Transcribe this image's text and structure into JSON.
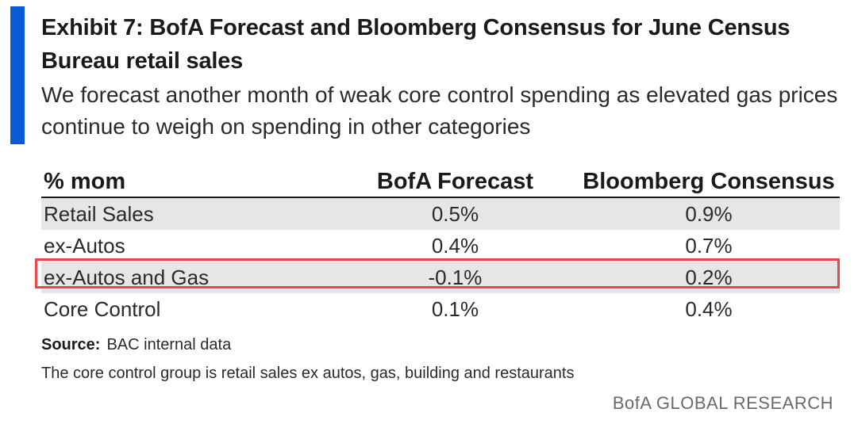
{
  "exhibit": {
    "title": "Exhibit 7: BofA Forecast and Bloomberg Consensus for June Census Bureau retail sales",
    "subtitle": "We forecast another month of weak core control spending as elevated gas prices continue to weigh on spending in other categories",
    "accent_color": "#0a5bd6",
    "highlight_color": "#e8474c"
  },
  "table": {
    "headers": [
      "% mom",
      "BofA Forecast",
      "Bloomberg Consensus"
    ],
    "rows": [
      {
        "label": "Retail Sales",
        "bofa": "0.5%",
        "bloomberg": "0.9%"
      },
      {
        "label": "ex-Autos",
        "bofa": "0.4%",
        "bloomberg": "0.7%"
      },
      {
        "label": "ex-Autos and Gas",
        "bofa": "-0.1%",
        "bloomberg": "0.2%"
      },
      {
        "label": "Core Control",
        "bofa": "0.1%",
        "bloomberg": "0.4%"
      }
    ],
    "highlighted_row": "ex-Autos and Gas"
  },
  "footer": {
    "source_label": "Source:",
    "source_text": "BAC internal data",
    "note": "The core control group is retail sales ex autos, gas, building and restaurants",
    "brand": "BofA GLOBAL RESEARCH"
  }
}
